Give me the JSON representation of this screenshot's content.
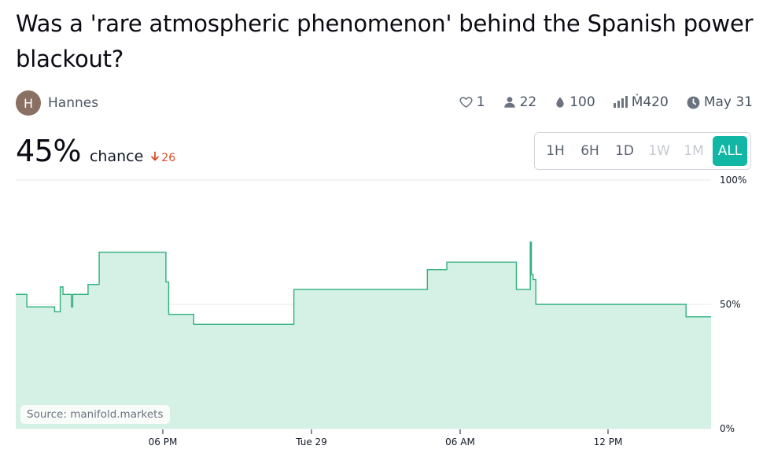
{
  "title": "Was a 'rare atmospheric phenomenon' behind the Spanish power blackout?",
  "author": {
    "initial": "H",
    "name": "Hannes"
  },
  "stats": {
    "likes": "1",
    "traders": "22",
    "liquidity": "100",
    "volume": "Ṁ420",
    "close_date": "May 31"
  },
  "probability": {
    "value": "45%",
    "label": "chance",
    "change": "26",
    "change_direction": "down"
  },
  "time_ranges": [
    {
      "label": "1H",
      "state": "enabled"
    },
    {
      "label": "6H",
      "state": "enabled"
    },
    {
      "label": "1D",
      "state": "enabled"
    },
    {
      "label": "1W",
      "state": "disabled"
    },
    {
      "label": "1M",
      "state": "disabled"
    },
    {
      "label": "ALL",
      "state": "active"
    }
  ],
  "source_label": "Source: manifold.markets",
  "colors": {
    "line": "#2fb07e",
    "fill": "#d5f0e4",
    "accent": "#11b6a4",
    "down": "#dc4b26"
  },
  "chart_data": {
    "type": "line",
    "step": true,
    "x_tick_labels": [
      "06 PM",
      "Tue 29",
      "06 AM",
      "12 PM"
    ],
    "y_tick_labels": [
      "100%",
      "50%",
      "0%"
    ],
    "ylim": [
      0,
      100
    ],
    "series": [
      {
        "points": [
          [
            0,
            54
          ],
          [
            4,
            54
          ],
          [
            4,
            49
          ],
          [
            8,
            49
          ],
          [
            8,
            49
          ],
          [
            14,
            49
          ],
          [
            14,
            47
          ],
          [
            16,
            47
          ],
          [
            16,
            57
          ],
          [
            17,
            57
          ],
          [
            17,
            54
          ],
          [
            20,
            54
          ],
          [
            20,
            49
          ],
          [
            20.5,
            49
          ],
          [
            20.5,
            54
          ],
          [
            26,
            54
          ],
          [
            26,
            58
          ],
          [
            30,
            58
          ],
          [
            30,
            71
          ],
          [
            54,
            71
          ],
          [
            54,
            59
          ],
          [
            55,
            59
          ],
          [
            55,
            46
          ],
          [
            64,
            46
          ],
          [
            64,
            42
          ],
          [
            100,
            42
          ],
          [
            100,
            56
          ],
          [
            148,
            56
          ],
          [
            148,
            64
          ],
          [
            155,
            64
          ],
          [
            155,
            67
          ],
          [
            180,
            67
          ],
          [
            180,
            56
          ],
          [
            185,
            56
          ],
          [
            185,
            75
          ],
          [
            185.4,
            75
          ],
          [
            185.4,
            62
          ],
          [
            186,
            62
          ],
          [
            186,
            60
          ],
          [
            187,
            60
          ],
          [
            187,
            50
          ],
          [
            241,
            50
          ],
          [
            241,
            45
          ],
          [
            250,
            45
          ]
        ]
      }
    ]
  }
}
